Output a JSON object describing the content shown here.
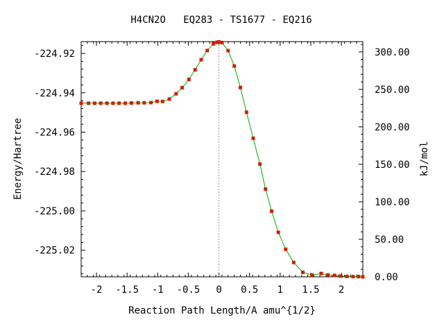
{
  "chart_data": {
    "type": "line",
    "title": "H4CN2O   EQ283 - TS1677 - EQ216",
    "xlabel": "Reaction Path Length/A amu^{1/2}",
    "ylabel": "Energy/Hartree",
    "y2label": "kJ/mol",
    "xlim": [
      -2.25,
      2.35
    ],
    "ylim": [
      -225.0335,
      -224.914
    ],
    "y2lim": [
      0,
      313.7
    ],
    "x_ticks": [
      -2,
      -1.5,
      -1,
      -0.5,
      0,
      0.5,
      1,
      1.5,
      2
    ],
    "x_tick_labels": [
      "-2",
      "-1.5",
      "-1",
      "-0.5",
      "0",
      "0.5",
      "1",
      "1.5",
      "2"
    ],
    "y_ticks": [
      -224.92,
      -224.94,
      -224.96,
      -224.98,
      -225.0,
      -225.02
    ],
    "y_tick_labels": [
      "-224.92",
      "-224.94",
      "-224.96",
      "-224.98",
      "-225.00",
      "-225.02"
    ],
    "y2_ticks": [
      300,
      250,
      200,
      150,
      100,
      50,
      0
    ],
    "y2_tick_labels": [
      "300.00",
      "250.00",
      "200.00",
      "150.00",
      "100.00",
      "50.00",
      "0.00"
    ],
    "ts_marker_x": 0,
    "line_color": "#00aa00",
    "point_color": "#cc2200",
    "series": [
      {
        "x": [
          -2.25,
          -2.13,
          -2.03,
          -1.93,
          -1.83,
          -1.73,
          -1.63,
          -1.53,
          -1.43,
          -1.32,
          -1.22,
          -1.11,
          -1.01,
          -0.92,
          -0.81,
          -0.7,
          -0.6,
          -0.49,
          -0.39,
          -0.29,
          -0.19,
          -0.09,
          -0.03,
          0.0,
          0.05,
          0.15,
          0.25,
          0.35,
          0.45,
          0.56,
          0.67,
          0.76,
          0.86,
          0.97,
          1.09,
          1.22,
          1.37,
          1.52,
          1.67,
          1.78,
          1.89,
          1.99,
          2.09,
          2.19,
          2.28,
          2.35
        ],
        "y": [
          -224.9453,
          -224.9453,
          -224.9453,
          -224.9453,
          -224.9453,
          -224.9453,
          -224.9453,
          -224.9453,
          -224.9452,
          -224.9451,
          -224.9451,
          -224.945,
          -224.9443,
          -224.9444,
          -224.9432,
          -224.9405,
          -224.9374,
          -224.9332,
          -224.9283,
          -224.9232,
          -224.9185,
          -224.9151,
          -224.9143,
          -224.9141,
          -224.9145,
          -224.9186,
          -224.9264,
          -224.9373,
          -224.9499,
          -224.9631,
          -224.9762,
          -224.9889,
          -225.0001,
          -225.0109,
          -225.0195,
          -225.0262,
          -225.0312,
          -225.0326,
          -225.0318,
          -225.0325,
          -225.0328,
          -225.0331,
          -225.0333,
          -225.0334,
          -225.0334,
          -225.0335
        ]
      }
    ]
  }
}
